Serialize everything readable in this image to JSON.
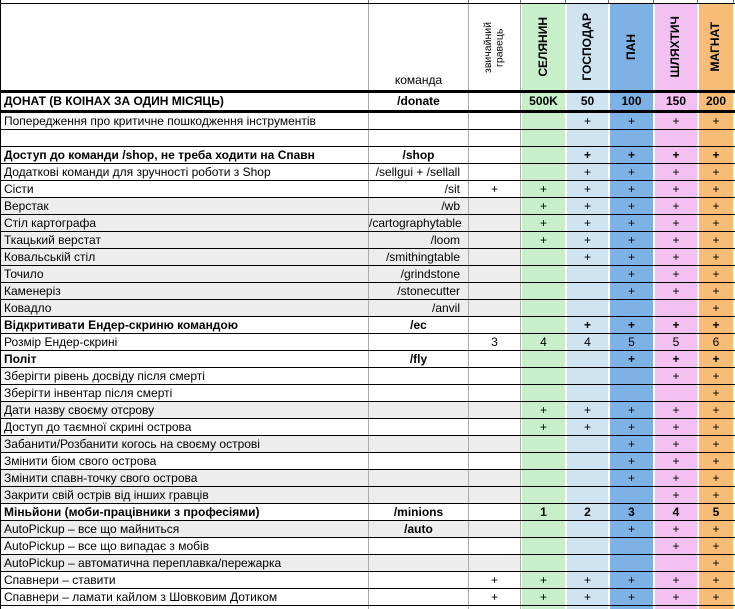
{
  "header": {
    "command_label": "команда",
    "player_label": "звичайний\nгравець",
    "tiers": [
      {
        "label": "СЕЛЯНИН",
        "color": "#c9efca"
      },
      {
        "label": "ГОСПОДАР",
        "color": "#cfe3f1"
      },
      {
        "label": "ПАН",
        "color": "#7eb2e5"
      },
      {
        "label": "ШЛЯХТИЧ",
        "color": "#f3c1f1"
      },
      {
        "label": "МАГНАТ",
        "color": "#f7bd77"
      }
    ],
    "shade_color": "#ededed"
  },
  "rows": [
    {
      "desc": "ДОНАТ (В КОІНАХ ЗА ОДИН МІСЯЦЬ)",
      "cmd": "/donate",
      "cmd_bold": true,
      "bold": true,
      "donate": true,
      "shade": false,
      "values": [
        "",
        "500K",
        "50",
        "100",
        "150",
        "200"
      ]
    },
    {
      "desc": "Попередження про критичне пошкодження інструментів",
      "cmd": "",
      "cmd_bold": false,
      "bold": false,
      "donate": false,
      "shade": false,
      "values": [
        "",
        "",
        "+",
        "+",
        "+",
        "+"
      ]
    },
    {
      "desc": "",
      "cmd": "",
      "cmd_bold": false,
      "bold": false,
      "donate": false,
      "shade": false,
      "values": [
        "",
        "",
        "",
        "",
        "",
        ""
      ]
    },
    {
      "desc": "Доступ до команди /shop, не треба ходити на Спавн",
      "cmd": "/shop",
      "cmd_bold": true,
      "bold": true,
      "donate": false,
      "shade": false,
      "values": [
        "",
        "",
        "+",
        "+",
        "+",
        "+"
      ]
    },
    {
      "desc": "Додаткові команди для зручності роботи з Shop",
      "cmd": "/sellgui + /sellall",
      "cmd_bold": false,
      "bold": false,
      "donate": false,
      "shade": false,
      "values": [
        "",
        "",
        "+",
        "+",
        "+",
        "+"
      ]
    },
    {
      "desc": "Сісти",
      "cmd": "/sit",
      "cmd_bold": false,
      "bold": false,
      "donate": false,
      "shade": false,
      "values": [
        "+",
        "+",
        "+",
        "+",
        "+",
        "+"
      ]
    },
    {
      "desc": "Верстак",
      "cmd": "/wb",
      "cmd_bold": false,
      "bold": false,
      "donate": false,
      "shade": true,
      "values": [
        "",
        "+",
        "+",
        "+",
        "+",
        "+"
      ]
    },
    {
      "desc": "Стіл картографа",
      "cmd": "/cartographytable",
      "cmd_bold": false,
      "bold": false,
      "donate": false,
      "shade": true,
      "values": [
        "",
        "+",
        "+",
        "+",
        "+",
        "+"
      ]
    },
    {
      "desc": "Ткацький верстат",
      "cmd": "/loom",
      "cmd_bold": false,
      "bold": false,
      "donate": false,
      "shade": true,
      "values": [
        "",
        "+",
        "+",
        "+",
        "+",
        "+"
      ]
    },
    {
      "desc": "Ковальській стіл",
      "cmd": "/smithingtable",
      "cmd_bold": false,
      "bold": false,
      "donate": false,
      "shade": true,
      "values": [
        "",
        "",
        "+",
        "+",
        "+",
        "+"
      ]
    },
    {
      "desc": "Точило",
      "cmd": "/grindstone",
      "cmd_bold": false,
      "bold": false,
      "donate": false,
      "shade": true,
      "values": [
        "",
        "",
        "",
        "+",
        "+",
        "+"
      ]
    },
    {
      "desc": "Каменеріз",
      "cmd": "/stonecutter",
      "cmd_bold": false,
      "bold": false,
      "donate": false,
      "shade": true,
      "values": [
        "",
        "",
        "",
        "+",
        "+",
        "+"
      ]
    },
    {
      "desc": "Ковадло",
      "cmd": "/anvil",
      "cmd_bold": false,
      "bold": false,
      "donate": false,
      "shade": true,
      "values": [
        "",
        "",
        "",
        "",
        "",
        "+"
      ]
    },
    {
      "desc": "Відкритивати Ендер-скриню командою",
      "cmd": "/ec",
      "cmd_bold": true,
      "bold": true,
      "donate": false,
      "shade": false,
      "values": [
        "",
        "",
        "+",
        "+",
        "+",
        "+"
      ]
    },
    {
      "desc": "Розмір Ендер-скрині",
      "cmd": "",
      "cmd_bold": false,
      "bold": false,
      "donate": false,
      "shade": false,
      "values": [
        "3",
        "4",
        "4",
        "5",
        "5",
        "6"
      ]
    },
    {
      "desc": "Політ",
      "cmd": "/fly",
      "cmd_bold": true,
      "bold": true,
      "donate": false,
      "shade": false,
      "values": [
        "",
        "",
        "",
        "+",
        "+",
        "+"
      ]
    },
    {
      "desc": "Зберігти рівень досвіду після смерті",
      "cmd": "",
      "cmd_bold": false,
      "bold": false,
      "donate": false,
      "shade": false,
      "values": [
        "",
        "",
        "",
        "",
        "+",
        "+"
      ]
    },
    {
      "desc": "Зберігти інвентар після смерті",
      "cmd": "",
      "cmd_bold": false,
      "bold": false,
      "donate": false,
      "shade": false,
      "values": [
        "",
        "",
        "",
        "",
        "",
        "+"
      ]
    },
    {
      "desc": "Дати назву своєму отсрову",
      "cmd": "",
      "cmd_bold": false,
      "bold": false,
      "donate": false,
      "shade": true,
      "values": [
        "",
        "+",
        "+",
        "+",
        "+",
        "+"
      ]
    },
    {
      "desc": "Доступ до таємної скрині острова",
      "cmd": "",
      "cmd_bold": false,
      "bold": false,
      "donate": false,
      "shade": false,
      "values": [
        "",
        "+",
        "+",
        "+",
        "+",
        "+"
      ]
    },
    {
      "desc": "Забанити/Розбанити когось на своєму острові",
      "cmd": "",
      "cmd_bold": false,
      "bold": false,
      "donate": false,
      "shade": true,
      "values": [
        "",
        "",
        "",
        "+",
        "+",
        "+"
      ]
    },
    {
      "desc": "Змінити біом свого острова",
      "cmd": "",
      "cmd_bold": false,
      "bold": false,
      "donate": false,
      "shade": false,
      "values": [
        "",
        "",
        "",
        "+",
        "+",
        "+"
      ]
    },
    {
      "desc": "Змінити спавн-точку свого острова",
      "cmd": "",
      "cmd_bold": false,
      "bold": false,
      "donate": false,
      "shade": true,
      "values": [
        "",
        "",
        "",
        "+",
        "+",
        "+"
      ]
    },
    {
      "desc": "Закрити свій острів від інших гравців",
      "cmd": "",
      "cmd_bold": false,
      "bold": false,
      "donate": false,
      "shade": true,
      "values": [
        "",
        "",
        "",
        "",
        "+",
        "+"
      ]
    },
    {
      "desc": "Міньйони (моби-працівники з професіями)",
      "cmd": "/minions",
      "cmd_bold": true,
      "bold": true,
      "donate": false,
      "shade": false,
      "values": [
        "",
        "1",
        "2",
        "3",
        "4",
        "5"
      ]
    },
    {
      "desc": "AutoPickup – все що майниться",
      "cmd": "/auto",
      "cmd_bold": true,
      "bold": false,
      "donate": false,
      "shade": true,
      "values": [
        "",
        "",
        "",
        "+",
        "+",
        "+"
      ]
    },
    {
      "desc": "AutoPickup – все що випадає з мобів",
      "cmd": "",
      "cmd_bold": false,
      "bold": false,
      "donate": false,
      "shade": false,
      "values": [
        "",
        "",
        "",
        "",
        "+",
        "+"
      ]
    },
    {
      "desc": "AutoPickup – автоматична переплавка/пережарка",
      "cmd": "",
      "cmd_bold": false,
      "bold": false,
      "donate": false,
      "shade": true,
      "values": [
        "",
        "",
        "",
        "",
        "",
        "+"
      ]
    },
    {
      "desc": "Спавнери – ставити",
      "cmd": "",
      "cmd_bold": false,
      "bold": false,
      "donate": false,
      "shade": false,
      "values": [
        "+",
        "+",
        "+",
        "+",
        "+",
        "+"
      ]
    },
    {
      "desc": "Спавнери – ламати кайлом з Шовковим Дотиком",
      "cmd": "",
      "cmd_bold": false,
      "bold": false,
      "donate": false,
      "shade": false,
      "values": [
        "+",
        "+",
        "+",
        "+",
        "+",
        "+"
      ]
    }
  ]
}
